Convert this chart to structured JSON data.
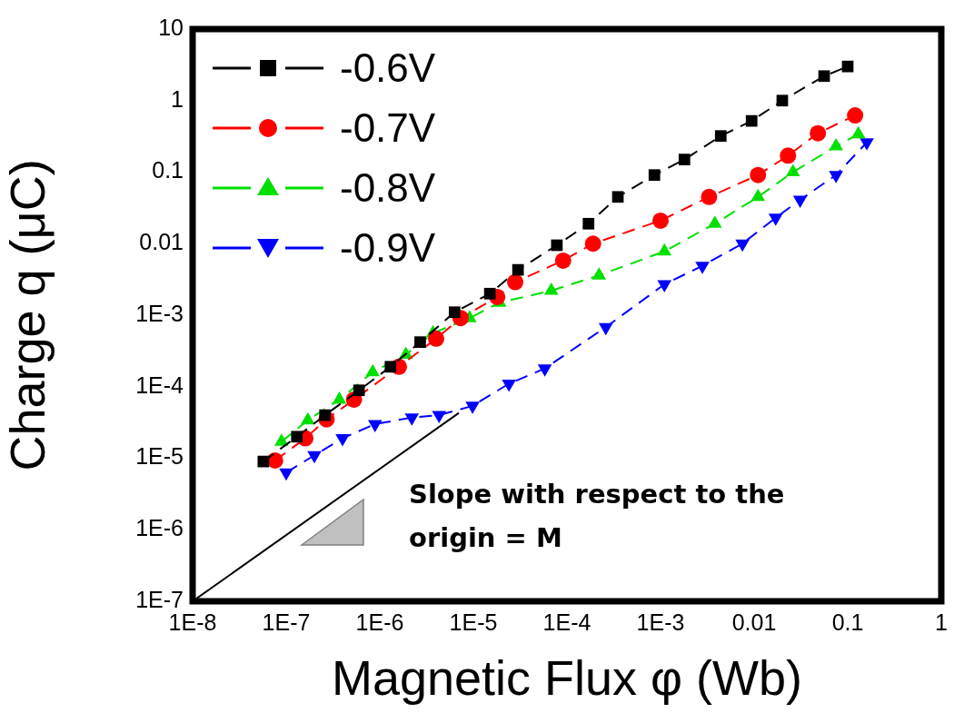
{
  "chart_data": {
    "type": "line",
    "xlabel": "Magnetic Flux φ (Wb)",
    "ylabel": "Charge q (μC)",
    "log": "xy",
    "grid": false,
    "legend": "top left",
    "line_style": "dashed",
    "xlim": [
      1e-08,
      1
    ],
    "ylim": [
      1e-07,
      10
    ],
    "xticks": [
      {
        "value": 1e-08,
        "label": "1E-8"
      },
      {
        "value": 1e-07,
        "label": "1E-7"
      },
      {
        "value": 1e-06,
        "label": "1E-6"
      },
      {
        "value": 1e-05,
        "label": "1E-5"
      },
      {
        "value": 0.0001,
        "label": "1E-4"
      },
      {
        "value": 0.001,
        "label": "1E-3"
      },
      0.01,
      0.1,
      1
    ],
    "yticks": [
      {
        "value": 1e-07,
        "label": "1E-7"
      },
      {
        "value": 1e-06,
        "label": "1E-6"
      },
      {
        "value": 1e-05,
        "label": "1E-5"
      },
      {
        "value": 0.0001,
        "label": "1E-4"
      },
      {
        "value": 0.001,
        "label": "1E-3"
      },
      0.01,
      0.1,
      1,
      10
    ],
    "series": [
      {
        "name": "-0.6V",
        "marker": "square",
        "color": "#000000",
        "x": [
          5.7e-08,
          1.3e-07,
          2.6e-07,
          6e-07,
          1.3e-06,
          2.7e-06,
          6.3e-06,
          1.5e-05,
          3e-05,
          7.8e-05,
          0.00017,
          0.00035,
          0.00086,
          0.0018,
          0.0044,
          0.0094,
          0.02,
          0.056,
          0.1
        ],
        "values": [
          9e-06,
          2e-05,
          4e-05,
          8.9e-05,
          0.00019,
          0.00042,
          0.0011,
          0.002,
          0.0043,
          0.0095,
          0.019,
          0.045,
          0.091,
          0.15,
          0.32,
          0.52,
          1,
          2.2,
          3
        ]
      },
      {
        "name": "-0.7V",
        "marker": "circle",
        "color": "#ff0000",
        "x": [
          7.6e-08,
          1.6e-07,
          2.7e-07,
          5.3e-07,
          1.6e-06,
          4e-06,
          7.3e-06,
          1.8e-05,
          2.8e-05,
          9.1e-05,
          0.00019,
          0.001,
          0.0033,
          0.011,
          0.023,
          0.048,
          0.12
        ],
        "values": [
          9.3e-06,
          1.9e-05,
          3.5e-05,
          6.6e-05,
          0.00019,
          0.00047,
          0.00091,
          0.0018,
          0.0029,
          0.0058,
          0.01,
          0.021,
          0.045,
          0.091,
          0.17,
          0.35,
          0.62
        ]
      },
      {
        "name": "-0.8V",
        "marker": "triangle",
        "color": "#00e000",
        "x": [
          8.9e-08,
          1.7e-07,
          3.7e-07,
          8.4e-07,
          1.9e-06,
          3.7e-06,
          9.1e-06,
          1.9e-05,
          6.8e-05,
          0.00022,
          0.0011,
          0.0038,
          0.011,
          0.026,
          0.075,
          0.13
        ],
        "values": [
          1.7e-05,
          3.4e-05,
          6.6e-05,
          0.00016,
          0.00028,
          0.00056,
          0.00091,
          0.0015,
          0.0022,
          0.0036,
          0.0078,
          0.019,
          0.045,
          0.1,
          0.23,
          0.34
        ]
      },
      {
        "name": "-0.9V",
        "marker": "triangle-down",
        "color": "#0000ff",
        "x": [
          1e-07,
          2e-07,
          4e-07,
          8.9e-07,
          2.2e-06,
          4.3e-06,
          9.8e-06,
          2.4e-05,
          5.8e-05,
          0.00026,
          0.0011,
          0.0028,
          0.0075,
          0.017,
          0.031,
          0.075,
          0.16
        ],
        "values": [
          6.3e-06,
          1.1e-05,
          1.9e-05,
          3e-05,
          3.7e-05,
          4e-05,
          5.4e-05,
          0.00011,
          0.00018,
          0.00068,
          0.0027,
          0.0049,
          0.01,
          0.023,
          0.041,
          0.091,
          0.26
        ]
      },
      {
        "type": "line",
        "color": "#000000",
        "marker": "none",
        "line_style": "solid",
        "x": [
          1e-08,
          7e-06
        ],
        "values": [
          1e-07,
          4.3e-05
        ]
      }
    ],
    "annotations": [
      "Slope with respect to the origin = M"
    ]
  }
}
